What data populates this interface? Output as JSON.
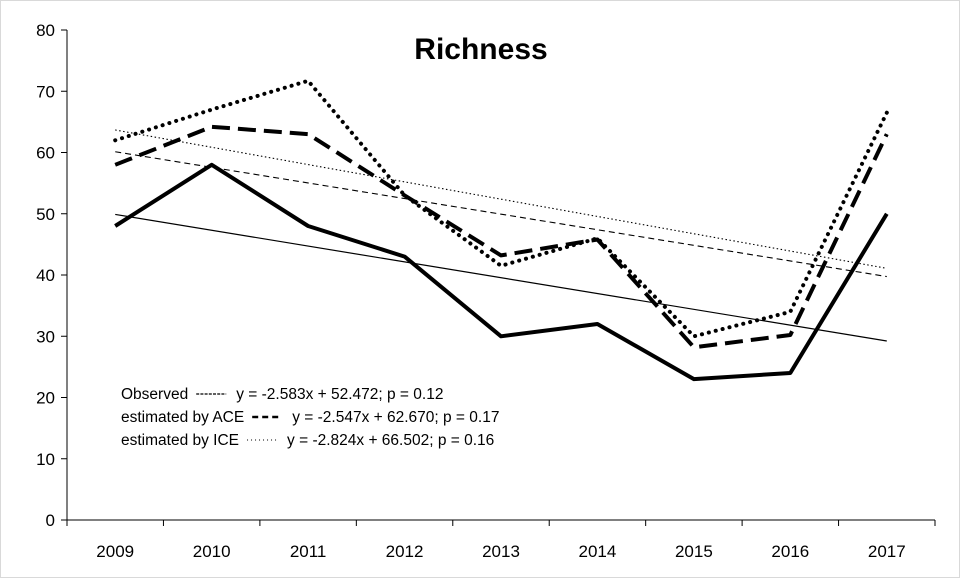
{
  "chart_data": {
    "type": "line",
    "title": "Richness",
    "xlabel": "",
    "ylabel": "",
    "categories": [
      "2009",
      "2010",
      "2011",
      "2012",
      "2013",
      "2014",
      "2015",
      "2016",
      "2017"
    ],
    "ylim": [
      0,
      80
    ],
    "yticks": [
      0,
      10,
      20,
      30,
      40,
      50,
      60,
      70,
      80
    ],
    "grid": false,
    "series": [
      {
        "name": "Observed",
        "style": "solid-thick",
        "values": [
          48,
          58,
          48,
          43,
          30,
          32,
          23,
          24,
          50
        ]
      },
      {
        "name": "estimated by ACE",
        "style": "dashed-thick",
        "values": [
          58,
          64.2,
          63,
          53,
          43.2,
          45.8,
          28.2,
          30.2,
          63
        ]
      },
      {
        "name": "estimated by ICE",
        "style": "dotted-thick",
        "values": [
          62,
          67,
          71.7,
          53,
          41.5,
          46,
          30,
          34,
          66.5
        ]
      }
    ],
    "trendlines": [
      {
        "series": "Observed",
        "style": "solid-thin",
        "slope": -2.583,
        "intercept": 52.472
      },
      {
        "series": "estimated by ACE",
        "style": "dashed-thin",
        "slope": -2.547,
        "intercept": 62.67
      },
      {
        "series": "estimated by ICE",
        "style": "dotted-thin",
        "slope": -2.824,
        "intercept": 66.502
      }
    ],
    "legend": {
      "placement": "bottom-left",
      "entries": [
        {
          "label": "Observed",
          "equation": "y = -2.583x  + 52.472;  p = 0.12"
        },
        {
          "label": "estimated by ACE",
          "equation": "y = -2.547x  + 62.670;  p = 0.17"
        },
        {
          "label": "estimated by ICE",
          "equation": "y = -2.824x  + 66.502;  p = 0.16"
        }
      ]
    }
  }
}
